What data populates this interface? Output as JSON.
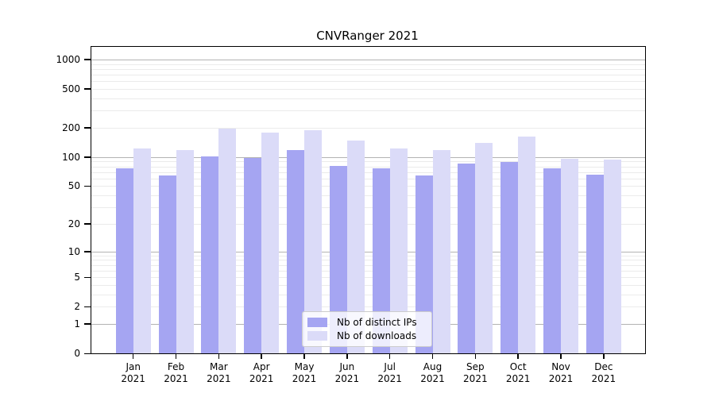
{
  "chart_data": {
    "type": "bar",
    "title": "CNVRanger 2021",
    "categories": [
      "Jan 2021",
      "Feb 2021",
      "Mar 2021",
      "Apr 2021",
      "May 2021",
      "Jun 2021",
      "Jul 2021",
      "Aug 2021",
      "Sep 2021",
      "Oct 2021",
      "Nov 2021",
      "Dec 2021"
    ],
    "months": [
      "Jan",
      "Feb",
      "Mar",
      "Apr",
      "May",
      "Jun",
      "Jul",
      "Aug",
      "Sep",
      "Oct",
      "Nov",
      "Dec"
    ],
    "year": "2021",
    "series": [
      {
        "name": "Nb of distinct IPs",
        "color": "#a5a5f2",
        "values": [
          76,
          65,
          101,
          98,
          118,
          81,
          77,
          64,
          85,
          89,
          76,
          66
        ]
      },
      {
        "name": "Nb of downloads",
        "color": "#dbdbf8",
        "values": [
          122,
          119,
          197,
          178,
          189,
          148,
          123,
          117,
          139,
          163,
          95,
          94
        ]
      }
    ],
    "y_axis": {
      "scale": "log10(value+1)",
      "tick_values": [
        0,
        1,
        2,
        5,
        10,
        20,
        50,
        100,
        200,
        500,
        1000
      ],
      "tick_labels": [
        "0",
        "1",
        "2",
        "5",
        "10",
        "20",
        "50",
        "100",
        "200",
        "500",
        "1000"
      ],
      "ylim": [
        0,
        1340
      ]
    },
    "grid": true,
    "legend_position": "bottom-center",
    "colors": {
      "major_grid": "#b3b3b3",
      "minor_grid": "#ebebeb",
      "spine": "#000000",
      "text": "#000000"
    }
  }
}
